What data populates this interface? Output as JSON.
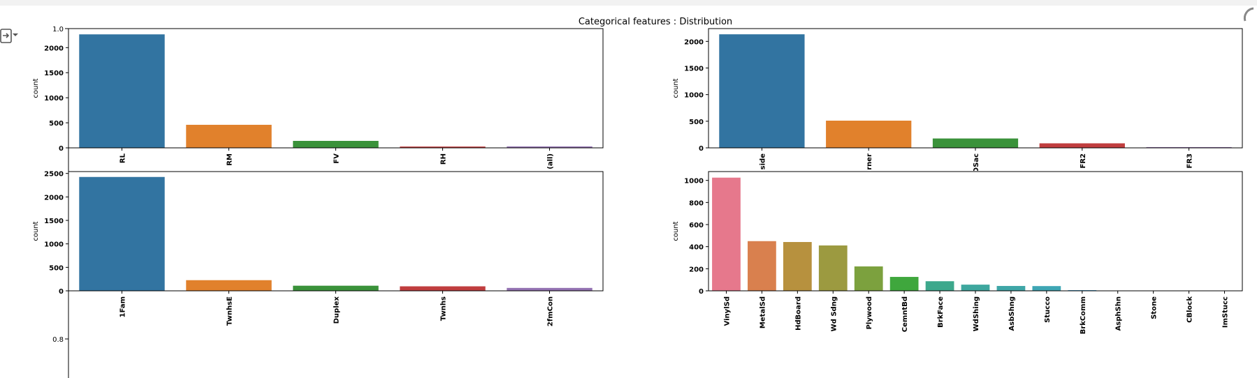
{
  "figure": {
    "suptitle": "Categorical features : Distribution",
    "background_axis": {
      "yticks": [
        "1.0",
        "0.8"
      ]
    }
  },
  "colors": {
    "tab10": [
      "#3274a1",
      "#e1812c",
      "#3a923a",
      "#c03d3e",
      "#9372b2"
    ],
    "husl15": [
      "#e6788c",
      "#d9804e",
      "#b7913e",
      "#9c9a40",
      "#7ca13e",
      "#3fa73d",
      "#3da88c",
      "#3ea79e",
      "#3fa6a7",
      "#3ea6b4",
      "#42a1d4",
      "#7d93e4",
      "#b485e6",
      "#de7adb",
      "#e47ab3"
    ]
  },
  "icons": {
    "output": "output-toggle-icon"
  },
  "chart_data": [
    {
      "type": "bar",
      "ylabel": "count",
      "categories": [
        "RL",
        "RM",
        "FV",
        "RH",
        "(all)"
      ],
      "values": [
        2265,
        460,
        139,
        26,
        28
      ],
      "ylim": [
        0,
        2380
      ],
      "yticks": [
        0,
        500,
        1000,
        1500,
        2000
      ],
      "palette": "tab10"
    },
    {
      "type": "bar",
      "ylabel": "count",
      "categories": [
        "side",
        "rner",
        "DSac",
        "FR2",
        "FR3"
      ],
      "values": [
        2133,
        511,
        176,
        85,
        14
      ],
      "ylim": [
        0,
        2240
      ],
      "yticks": [
        0,
        500,
        1000,
        1500,
        2000
      ],
      "palette": "tab10"
    },
    {
      "type": "bar",
      "ylabel": "count",
      "categories": [
        "1Fam",
        "TwnhsE",
        "Duplex",
        "Twnhs",
        "2fmCon"
      ],
      "values": [
        2425,
        227,
        109,
        96,
        62
      ],
      "ylim": [
        0,
        2540
      ],
      "yticks": [
        0,
        500,
        1000,
        1500,
        2000,
        2500
      ],
      "palette": "tab10"
    },
    {
      "type": "bar",
      "ylabel": "count",
      "categories": [
        "VinylSd",
        "MetalSd",
        "HdBoard",
        "Wd Sdng",
        "Plywood",
        "CemntBd",
        "BrkFace",
        "WdShing",
        "AsbShng",
        "Stucco",
        "BrkComm",
        "AsphShn",
        "Stone",
        "CBlock",
        "ImStucc"
      ],
      "values": [
        1025,
        450,
        442,
        411,
        221,
        126,
        87,
        56,
        44,
        43,
        6,
        2,
        2,
        2,
        1
      ],
      "ylim": [
        0,
        1080
      ],
      "yticks": [
        0,
        200,
        400,
        600,
        800,
        1000
      ],
      "palette": "husl15"
    }
  ]
}
